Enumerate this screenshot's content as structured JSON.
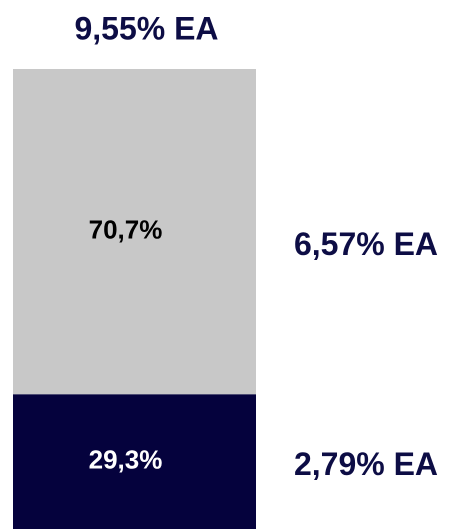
{
  "chart_data": {
    "type": "bar",
    "stacked": true,
    "series": [
      {
        "color": "#05023d",
        "label_color": "#ffffff",
        "values": [
          29.3
        ],
        "value_labels": [
          "29,3%"
        ]
      },
      {
        "color": "#c8c8c8",
        "label_color": "#000000",
        "values": [
          70.7
        ],
        "value_labels": [
          "70,7%"
        ]
      }
    ],
    "annotations": [
      "9,55% EA",
      "6,57% EA",
      "2,79% EA"
    ]
  }
}
